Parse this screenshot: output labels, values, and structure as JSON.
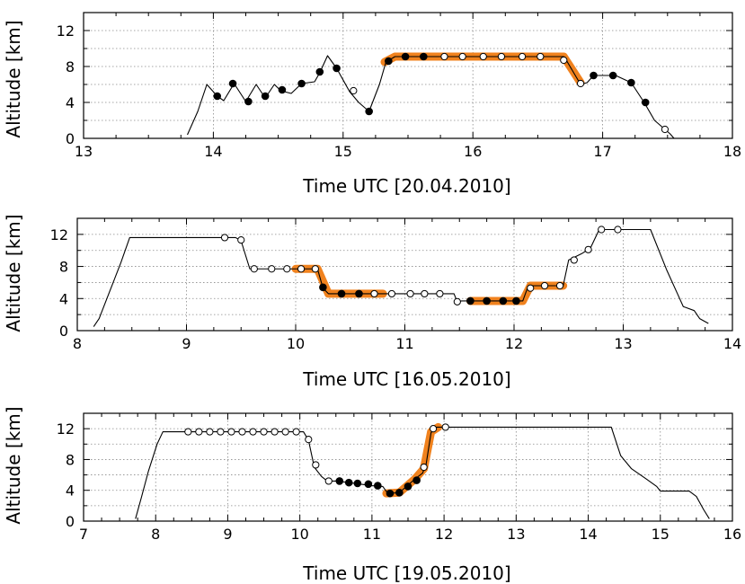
{
  "colors": {
    "highlight": "#f0821e",
    "line": "#000000",
    "open_marker_fill": "#ffffff"
  },
  "chart_data": [
    {
      "type": "line",
      "xlabel": "Time UTC [20.04.2010]",
      "ylabel": "Altitude [km]",
      "xlim": [
        13,
        18
      ],
      "ylim": [
        0,
        14
      ],
      "xticks": [
        13,
        14,
        15,
        16,
        17,
        18
      ],
      "yticks": [
        0,
        4,
        8,
        12
      ],
      "grid": true,
      "profile": [
        [
          13.8,
          0.4
        ],
        [
          13.88,
          3.0
        ],
        [
          13.95,
          6.0
        ],
        [
          14.03,
          4.7
        ],
        [
          14.08,
          4.2
        ],
        [
          14.16,
          6.1
        ],
        [
          14.25,
          4.1
        ],
        [
          14.33,
          6.0
        ],
        [
          14.4,
          4.5
        ],
        [
          14.47,
          6.0
        ],
        [
          14.52,
          5.3
        ],
        [
          14.6,
          5.0
        ],
        [
          14.68,
          6.1
        ],
        [
          14.78,
          6.3
        ],
        [
          14.82,
          7.3
        ],
        [
          14.88,
          9.2
        ],
        [
          14.95,
          7.8
        ],
        [
          15.05,
          5.2
        ],
        [
          15.12,
          4.0
        ],
        [
          15.2,
          3.0
        ],
        [
          15.28,
          6.0
        ],
        [
          15.33,
          8.5
        ],
        [
          15.4,
          9.1
        ],
        [
          16.7,
          9.1
        ],
        [
          16.72,
          8.7
        ],
        [
          16.83,
          6.0
        ],
        [
          16.88,
          6.2
        ],
        [
          16.93,
          7.0
        ],
        [
          17.1,
          7.0
        ],
        [
          17.22,
          6.2
        ],
        [
          17.32,
          4.0
        ],
        [
          17.4,
          2.0
        ],
        [
          17.52,
          0.5
        ],
        [
          17.55,
          0.0
        ]
      ],
      "highlight": [
        [
          15.32,
          8.5
        ],
        [
          15.4,
          9.1
        ],
        [
          16.7,
          9.1
        ],
        [
          16.83,
          6.2
        ]
      ],
      "markers_filled": [
        [
          14.03,
          4.7
        ],
        [
          14.15,
          6.1
        ],
        [
          14.27,
          4.1
        ],
        [
          14.4,
          4.7
        ],
        [
          14.53,
          5.4
        ],
        [
          14.68,
          6.1
        ],
        [
          14.82,
          7.4
        ],
        [
          14.95,
          7.8
        ],
        [
          15.2,
          3.0
        ],
        [
          15.35,
          8.6
        ],
        [
          15.48,
          9.1
        ],
        [
          15.62,
          9.1
        ],
        [
          16.93,
          7.0
        ],
        [
          17.08,
          7.0
        ],
        [
          17.22,
          6.2
        ],
        [
          17.33,
          4.0
        ]
      ],
      "markers_open": [
        [
          15.08,
          5.3
        ],
        [
          15.78,
          9.1
        ],
        [
          15.92,
          9.1
        ],
        [
          16.08,
          9.1
        ],
        [
          16.22,
          9.1
        ],
        [
          16.38,
          9.1
        ],
        [
          16.52,
          9.1
        ],
        [
          16.7,
          8.7
        ],
        [
          16.83,
          6.1
        ],
        [
          17.48,
          1.0
        ]
      ]
    },
    {
      "type": "line",
      "xlabel": "Time UTC [16.05.2010]",
      "ylabel": "Altitude [km]",
      "xlim": [
        8,
        14
      ],
      "ylim": [
        0,
        14
      ],
      "xticks": [
        8,
        9,
        10,
        11,
        12,
        13,
        14
      ],
      "yticks": [
        0,
        4,
        8,
        12
      ],
      "grid": true,
      "profile": [
        [
          8.15,
          0.5
        ],
        [
          8.2,
          1.5
        ],
        [
          8.3,
          5.0
        ],
        [
          8.4,
          8.5
        ],
        [
          8.48,
          11.6
        ],
        [
          9.45,
          11.6
        ],
        [
          9.5,
          11.2
        ],
        [
          9.58,
          7.7
        ],
        [
          10.2,
          7.7
        ],
        [
          10.25,
          5.3
        ],
        [
          10.3,
          4.6
        ],
        [
          11.45,
          4.6
        ],
        [
          11.48,
          3.6
        ],
        [
          11.52,
          3.7
        ],
        [
          12.08,
          3.7
        ],
        [
          12.12,
          5.2
        ],
        [
          12.15,
          5.6
        ],
        [
          12.45,
          5.6
        ],
        [
          12.5,
          8.8
        ],
        [
          12.62,
          9.6
        ],
        [
          12.7,
          10.3
        ],
        [
          12.78,
          12.6
        ],
        [
          13.25,
          12.6
        ],
        [
          13.4,
          7.5
        ],
        [
          13.5,
          4.5
        ],
        [
          13.55,
          3.0
        ],
        [
          13.65,
          2.5
        ],
        [
          13.7,
          1.5
        ],
        [
          13.78,
          0.9
        ]
      ],
      "highlight": [
        [
          10.0,
          7.7
        ],
        [
          10.2,
          7.7
        ],
        [
          10.3,
          4.6
        ],
        [
          10.8,
          4.6
        ]
      ],
      "highlight2": [
        [
          11.6,
          3.7
        ],
        [
          12.08,
          3.7
        ],
        [
          12.15,
          5.6
        ],
        [
          12.45,
          5.6
        ]
      ],
      "markers_filled": [
        [
          10.25,
          5.4
        ],
        [
          10.42,
          4.6
        ],
        [
          10.58,
          4.6
        ],
        [
          11.6,
          3.7
        ],
        [
          11.75,
          3.7
        ],
        [
          11.9,
          3.7
        ],
        [
          12.02,
          3.7
        ]
      ],
      "markers_open": [
        [
          9.35,
          11.6
        ],
        [
          9.5,
          11.3
        ],
        [
          9.62,
          7.7
        ],
        [
          9.78,
          7.7
        ],
        [
          9.92,
          7.7
        ],
        [
          10.05,
          7.7
        ],
        [
          10.18,
          7.7
        ],
        [
          10.72,
          4.6
        ],
        [
          10.88,
          4.6
        ],
        [
          11.05,
          4.6
        ],
        [
          11.18,
          4.6
        ],
        [
          11.32,
          4.6
        ],
        [
          11.48,
          3.6
        ],
        [
          12.15,
          5.3
        ],
        [
          12.28,
          5.6
        ],
        [
          12.42,
          5.6
        ],
        [
          12.55,
          8.8
        ],
        [
          12.68,
          10.1
        ],
        [
          12.8,
          12.6
        ],
        [
          12.95,
          12.6
        ]
      ]
    },
    {
      "type": "line",
      "xlabel": "Time UTC [19.05.2010]",
      "ylabel": "Altitude [km]",
      "xlim": [
        7,
        16
      ],
      "ylim": [
        0,
        14
      ],
      "xticks": [
        7,
        8,
        9,
        10,
        11,
        12,
        13,
        14,
        15,
        16
      ],
      "yticks": [
        0,
        4,
        8,
        12
      ],
      "grid": true,
      "profile": [
        [
          7.72,
          0.3
        ],
        [
          7.8,
          3.0
        ],
        [
          7.9,
          6.5
        ],
        [
          8.02,
          10.0
        ],
        [
          8.1,
          11.6
        ],
        [
          10.05,
          11.6
        ],
        [
          10.12,
          10.5
        ],
        [
          10.2,
          7.0
        ],
        [
          10.3,
          5.8
        ],
        [
          10.38,
          5.2
        ],
        [
          10.52,
          5.2
        ],
        [
          11.0,
          4.6
        ],
        [
          11.15,
          4.5
        ],
        [
          11.22,
          3.6
        ],
        [
          11.38,
          3.7
        ],
        [
          11.6,
          5.5
        ],
        [
          11.7,
          6.2
        ],
        [
          11.75,
          7.3
        ],
        [
          11.82,
          11.5
        ],
        [
          11.9,
          12.2
        ],
        [
          14.32,
          12.2
        ],
        [
          14.45,
          8.5
        ],
        [
          14.6,
          6.8
        ],
        [
          14.8,
          5.5
        ],
        [
          14.95,
          4.5
        ],
        [
          15.0,
          3.9
        ],
        [
          15.4,
          3.9
        ],
        [
          15.5,
          3.2
        ],
        [
          15.6,
          1.5
        ],
        [
          15.68,
          0.3
        ]
      ],
      "highlight": [
        [
          11.2,
          3.6
        ],
        [
          11.38,
          3.7
        ],
        [
          11.6,
          5.5
        ],
        [
          11.72,
          6.8
        ],
        [
          11.82,
          11.6
        ],
        [
          11.92,
          12.2
        ]
      ],
      "markers_filled": [
        [
          10.55,
          5.2
        ],
        [
          10.68,
          5.0
        ],
        [
          10.8,
          4.9
        ],
        [
          10.95,
          4.8
        ],
        [
          11.08,
          4.6
        ],
        [
          11.25,
          3.6
        ],
        [
          11.38,
          3.7
        ],
        [
          11.5,
          4.5
        ],
        [
          11.62,
          5.3
        ]
      ],
      "markers_open": [
        [
          8.45,
          11.6
        ],
        [
          8.6,
          11.6
        ],
        [
          8.75,
          11.6
        ],
        [
          8.9,
          11.6
        ],
        [
          9.05,
          11.6
        ],
        [
          9.2,
          11.6
        ],
        [
          9.35,
          11.6
        ],
        [
          9.5,
          11.6
        ],
        [
          9.65,
          11.6
        ],
        [
          9.8,
          11.6
        ],
        [
          9.95,
          11.6
        ],
        [
          10.12,
          10.6
        ],
        [
          10.22,
          7.3
        ],
        [
          10.4,
          5.2
        ],
        [
          11.72,
          7.0
        ],
        [
          11.85,
          12.0
        ],
        [
          12.02,
          12.2
        ]
      ]
    }
  ]
}
